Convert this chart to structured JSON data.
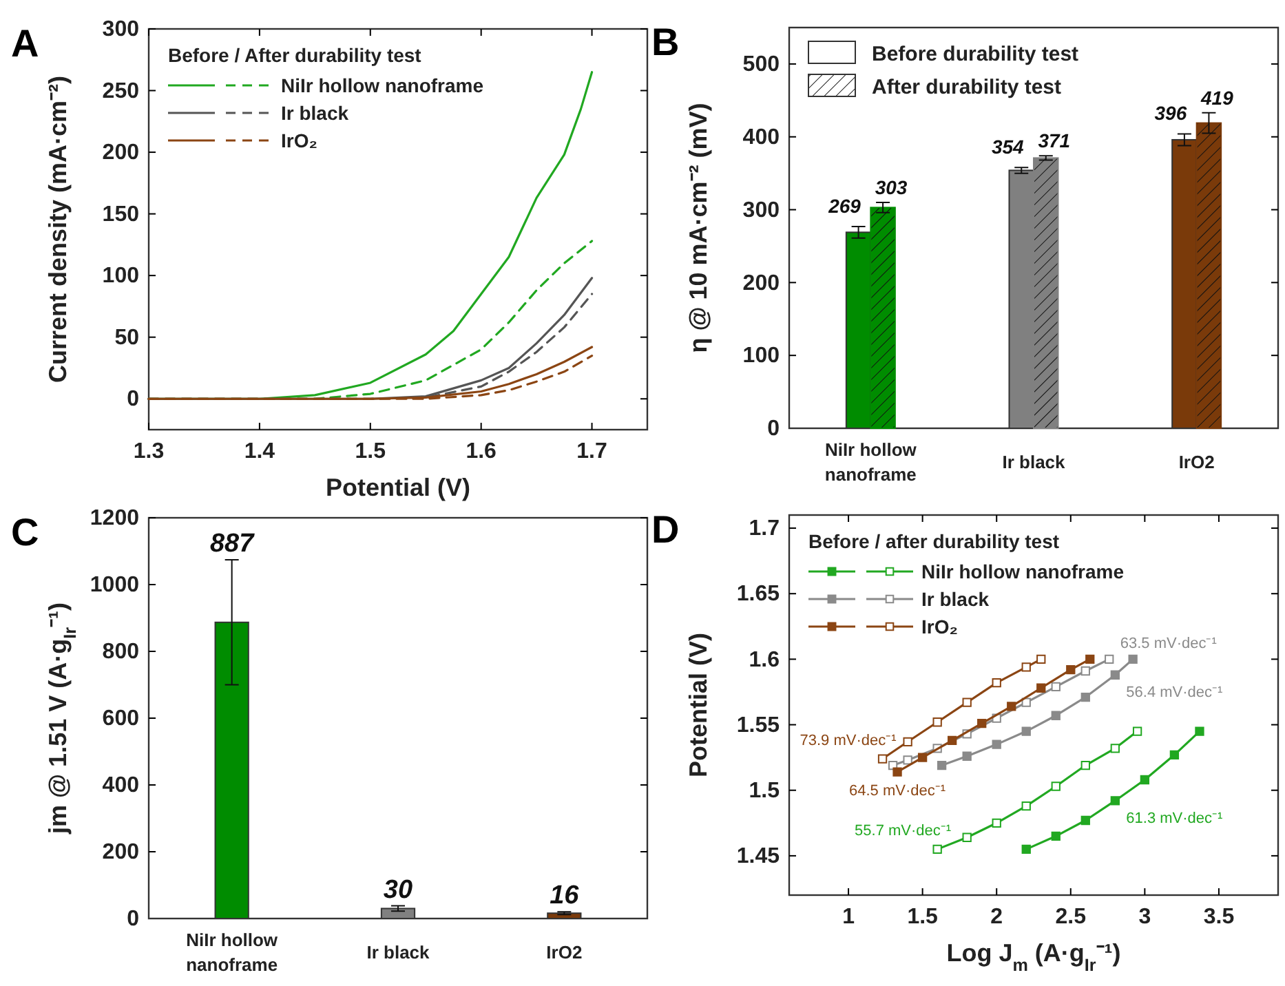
{
  "chart_data": [
    {
      "type": "line",
      "title": "A",
      "xlabel": "Potential (V)",
      "ylabel": "Current density (mA·cm⁻²)",
      "legend_title": "Before / After durability test",
      "legend": "top left",
      "xlim": [
        1.3,
        1.75
      ],
      "xticks": [
        1.3,
        1.4,
        1.5,
        1.6,
        1.7
      ],
      "ylim": [
        -25,
        300
      ],
      "yticks": [
        0,
        50,
        100,
        150,
        200,
        250,
        300
      ],
      "series": [
        {
          "name": "NiIr hollow nanoframe",
          "color": "#21a821",
          "line_style": "solid",
          "x": [
            1.3,
            1.4,
            1.45,
            1.5,
            1.55,
            1.575,
            1.6,
            1.625,
            1.65,
            1.675,
            1.69,
            1.7
          ],
          "values": [
            0,
            0,
            3,
            13,
            36,
            55,
            85,
            115,
            163,
            198,
            235,
            265
          ]
        },
        {
          "color": "#21a821",
          "line_style": "dashed",
          "x": [
            1.3,
            1.45,
            1.5,
            1.55,
            1.6,
            1.625,
            1.65,
            1.675,
            1.7
          ],
          "values": [
            0,
            0,
            4,
            15,
            40,
            62,
            88,
            110,
            128
          ]
        },
        {
          "name": "Ir black",
          "color": "#555555",
          "line_style": "solid",
          "x": [
            1.3,
            1.5,
            1.55,
            1.6,
            1.625,
            1.65,
            1.675,
            1.7
          ],
          "values": [
            0,
            0,
            2,
            15,
            25,
            45,
            68,
            98
          ]
        },
        {
          "color": "#555555",
          "line_style": "dashed",
          "x": [
            1.3,
            1.5,
            1.55,
            1.6,
            1.625,
            1.65,
            1.675,
            1.7
          ],
          "values": [
            0,
            0,
            1,
            10,
            22,
            38,
            58,
            85
          ]
        },
        {
          "name": "IrO₂",
          "color": "#8b4513",
          "line_style": "solid",
          "x": [
            1.3,
            1.5,
            1.55,
            1.6,
            1.625,
            1.65,
            1.675,
            1.7
          ],
          "values": [
            0,
            0,
            1,
            6,
            12,
            20,
            30,
            42
          ]
        },
        {
          "color": "#8b4513",
          "line_style": "dashed",
          "x": [
            1.3,
            1.55,
            1.6,
            1.625,
            1.65,
            1.675,
            1.7
          ],
          "values": [
            0,
            0,
            3,
            7,
            14,
            22,
            35
          ]
        }
      ]
    },
    {
      "type": "bar",
      "title": "B",
      "ylabel": "η @ 10 mA·cm⁻² (mV)",
      "categories": [
        "NiIr hollow nanoframe",
        "Ir black",
        "IrO2"
      ],
      "ylim": [
        0,
        550
      ],
      "yticks": [
        0,
        100,
        200,
        300,
        400,
        500
      ],
      "legend": "top left",
      "data_labels": true,
      "series": [
        {
          "name": "Before durability test",
          "colors": [
            "#008c00",
            "#808080",
            "#7a3a0a"
          ],
          "values": [
            269,
            354,
            396
          ],
          "errors": [
            8,
            4,
            8
          ]
        },
        {
          "name": "After durability test",
          "colors": [
            "#008c00",
            "#808080",
            "#7a3a0a"
          ],
          "values": [
            303,
            371,
            419
          ],
          "errors": [
            7,
            3,
            14
          ]
        }
      ]
    },
    {
      "type": "bar",
      "title": "C",
      "ylabel": "jm @ 1.51 V (A·g$_{Ir}$⁻¹)",
      "categories": [
        "NiIr hollow nanoframe",
        "Ir black",
        "IrO2"
      ],
      "ylim": [
        0,
        1200
      ],
      "yticks": [
        0,
        200,
        400,
        600,
        800,
        1000,
        1200
      ],
      "data_labels": true,
      "values": [
        887,
        30,
        16
      ],
      "colors": [
        "#008c00",
        "#808080",
        "#7a3a0a"
      ],
      "errors": [
        187,
        8,
        4
      ]
    },
    {
      "type": "line",
      "title": "D",
      "xlabel": "Log J$_{m}$ (A·g$_{Ir}$⁻¹)",
      "ylabel": "Potential (V)",
      "legend_title": "Before / after durability test",
      "legend": "top left",
      "marker": "square",
      "xlim": [
        0.6,
        3.9
      ],
      "xticks": [
        1.0,
        1.5,
        2.0,
        2.5,
        3.0,
        3.5
      ],
      "ylim": [
        1.42,
        1.71
      ],
      "yticks": [
        1.45,
        1.5,
        1.55,
        1.6,
        1.65,
        1.7
      ],
      "series": [
        {
          "name": "NiIr hollow nanoframe",
          "color": "#21a821",
          "x": [
            2.2,
            2.4,
            2.6,
            2.8,
            3.0,
            3.2,
            3.37
          ],
          "values": [
            1.455,
            1.465,
            1.477,
            1.492,
            1.508,
            1.527,
            1.545
          ]
        },
        {
          "color": "#21a821",
          "x": [
            1.6,
            1.8,
            2.0,
            2.2,
            2.4,
            2.6,
            2.8,
            2.95
          ],
          "values": [
            1.455,
            1.464,
            1.475,
            1.488,
            1.503,
            1.519,
            1.532,
            1.545
          ]
        },
        {
          "name": "Ir black",
          "color": "#8a8a8a",
          "x": [
            1.63,
            1.8,
            2.0,
            2.2,
            2.4,
            2.6,
            2.8,
            2.92
          ],
          "values": [
            1.519,
            1.526,
            1.535,
            1.545,
            1.557,
            1.571,
            1.588,
            1.6
          ]
        },
        {
          "color": "#8a8a8a",
          "x": [
            1.3,
            1.4,
            1.6,
            1.8,
            2.0,
            2.2,
            2.4,
            2.6,
            2.76
          ],
          "values": [
            1.519,
            1.523,
            1.532,
            1.543,
            1.555,
            1.567,
            1.579,
            1.591,
            1.6
          ]
        },
        {
          "name": "IrO₂",
          "color": "#8b4513",
          "x": [
            1.33,
            1.5,
            1.7,
            1.9,
            2.1,
            2.3,
            2.5,
            2.63
          ],
          "values": [
            1.514,
            1.525,
            1.538,
            1.551,
            1.564,
            1.578,
            1.592,
            1.6
          ]
        },
        {
          "color": "#8b4513",
          "x": [
            1.23,
            1.4,
            1.6,
            1.8,
            2.0,
            2.2,
            2.3
          ],
          "values": [
            1.524,
            1.537,
            1.552,
            1.567,
            1.582,
            1.594,
            1.6
          ]
        }
      ],
      "annotations": [
        {
          "text": "63.5 mV·dec⁻¹",
          "x": 2.76,
          "y": 1.6
        },
        {
          "text": "56.4 mV·dec⁻¹",
          "x": 2.8,
          "y": 1.588
        },
        {
          "text": "73.9 mV·dec⁻¹",
          "x": 1.23,
          "y": 1.524
        },
        {
          "text": "64.5 mV·dec⁻¹",
          "x": 1.33,
          "y": 1.514
        },
        {
          "text": "55.7 mV·dec⁻¹",
          "x": 1.6,
          "y": 1.455
        },
        {
          "text": "61.3 mV·dec⁻¹",
          "x": 2.8,
          "y": 1.492
        }
      ]
    }
  ]
}
